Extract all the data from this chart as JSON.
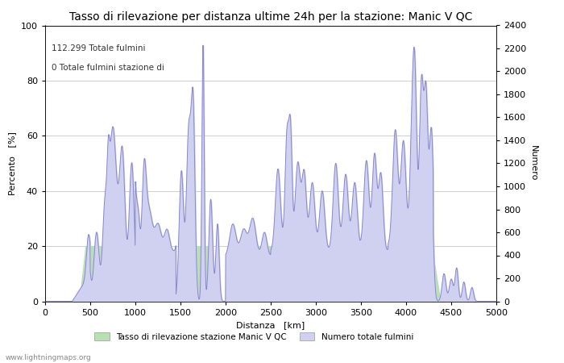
{
  "title": "Tasso di rilevazione per distanza ultime 24h per la stazione: Manic V QC",
  "xlabel": "Distanza   [km]",
  "ylabel_left": "Percento   [%]",
  "ylabel_right": "Numero",
  "annotation_line1": "112.299 Totale fulmini",
  "annotation_line2": "0 Totale fulmini stazione di",
  "legend_label1": "Tasso di rilevazione stazione Manic V QC",
  "legend_label2": "Numero totale fulmini",
  "watermark": "www.lightningmaps.org",
  "xlim": [
    0,
    5000
  ],
  "ylim_left": [
    0,
    100
  ],
  "ylim_right": [
    0,
    2400
  ],
  "xticks": [
    0,
    500,
    1000,
    1500,
    2000,
    2500,
    3000,
    3500,
    4000,
    4500,
    5000
  ],
  "yticks_left": [
    0,
    20,
    40,
    60,
    80,
    100
  ],
  "yticks_right": [
    0,
    200,
    400,
    600,
    800,
    1000,
    1200,
    1400,
    1600,
    1800,
    2000,
    2200,
    2400
  ],
  "fill_color_green": "#b8e0b0",
  "fill_color_blue": "#d0d0f0",
  "line_color": "#8888cc",
  "bg_color": "#ffffff",
  "grid_color": "#bbbbbb",
  "title_fontsize": 10,
  "label_fontsize": 8,
  "tick_fontsize": 8
}
